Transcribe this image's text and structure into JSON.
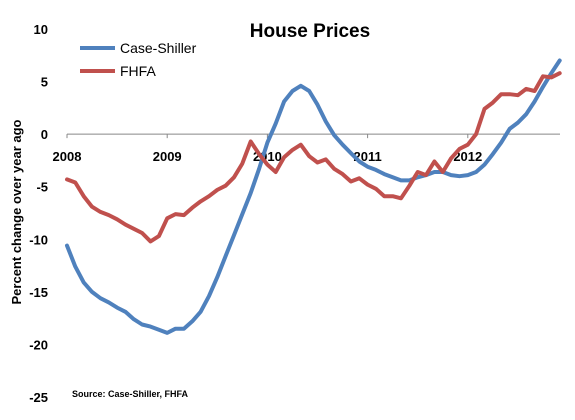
{
  "chart_data": {
    "type": "line",
    "title": "House Prices",
    "ylabel": "Percent change over year ago",
    "xlabel": "",
    "ylim": [
      -25,
      10
    ],
    "yticks": [
      10,
      5,
      0,
      -5,
      -10,
      -15,
      -20,
      -25
    ],
    "xlim": [
      2008,
      2013
    ],
    "xticks": [
      {
        "value": 2008,
        "label": "2008"
      },
      {
        "value": 2009,
        "label": "2009"
      },
      {
        "value": 2010,
        "label": "2010"
      },
      {
        "value": 2011,
        "label": "2011"
      },
      {
        "value": 2012,
        "label": "2012"
      }
    ],
    "grid": false,
    "legend_position": "top-left",
    "source": "Source: Case-Shiller, FHFA",
    "series": [
      {
        "name": "Case-Shiller",
        "color": "#4F81BD",
        "x": [
          2008.0,
          2008.083,
          2008.167,
          2008.25,
          2008.333,
          2008.417,
          2008.5,
          2008.583,
          2008.667,
          2008.75,
          2008.833,
          2008.917,
          2009.0,
          2009.083,
          2009.167,
          2009.25,
          2009.333,
          2009.417,
          2009.5,
          2009.583,
          2009.667,
          2009.75,
          2009.833,
          2009.917,
          2010.0,
          2010.083,
          2010.167,
          2010.25,
          2010.333,
          2010.417,
          2010.5,
          2010.583,
          2010.667,
          2010.75,
          2010.833,
          2010.917,
          2011.0,
          2011.083,
          2011.167,
          2011.25,
          2011.333,
          2011.417,
          2011.5,
          2011.583,
          2011.667,
          2011.75,
          2011.833,
          2011.917,
          2012.0,
          2012.083,
          2012.167,
          2012.25,
          2012.333,
          2012.417,
          2012.5,
          2012.583,
          2012.667,
          2012.75,
          2012.833,
          2012.917
        ],
        "y": [
          -10.6,
          -12.6,
          -14.1,
          -15.0,
          -15.6,
          -16.0,
          -16.5,
          -16.9,
          -17.6,
          -18.1,
          -18.3,
          -18.6,
          -18.9,
          -18.5,
          -18.5,
          -17.8,
          -16.9,
          -15.4,
          -13.6,
          -11.6,
          -9.6,
          -7.6,
          -5.6,
          -3.3,
          -0.8,
          1.0,
          3.1,
          4.1,
          4.6,
          4.1,
          2.8,
          1.2,
          -0.1,
          -1.0,
          -1.8,
          -2.6,
          -3.1,
          -3.4,
          -3.8,
          -4.1,
          -4.4,
          -4.4,
          -4.1,
          -3.9,
          -3.6,
          -3.6,
          -3.9,
          -4.0,
          -3.9,
          -3.6,
          -2.9,
          -1.9,
          -0.8,
          0.5,
          1.1,
          1.9,
          3.1,
          4.5,
          5.8,
          7.0
        ]
      },
      {
        "name": "FHFA",
        "color": "#C0504D",
        "x": [
          2008.0,
          2008.083,
          2008.167,
          2008.25,
          2008.333,
          2008.417,
          2008.5,
          2008.583,
          2008.667,
          2008.75,
          2008.833,
          2008.917,
          2009.0,
          2009.083,
          2009.167,
          2009.25,
          2009.333,
          2009.417,
          2009.5,
          2009.583,
          2009.667,
          2009.75,
          2009.833,
          2009.917,
          2010.0,
          2010.083,
          2010.167,
          2010.25,
          2010.333,
          2010.417,
          2010.5,
          2010.583,
          2010.667,
          2010.75,
          2010.833,
          2010.917,
          2011.0,
          2011.083,
          2011.167,
          2011.25,
          2011.333,
          2011.417,
          2011.5,
          2011.583,
          2011.667,
          2011.75,
          2011.833,
          2011.917,
          2012.0,
          2012.083,
          2012.167,
          2012.25,
          2012.333,
          2012.417,
          2012.5,
          2012.583,
          2012.667,
          2012.75,
          2012.833,
          2012.917
        ],
        "y": [
          -4.3,
          -4.6,
          -5.9,
          -6.9,
          -7.4,
          -7.7,
          -8.1,
          -8.6,
          -9.0,
          -9.4,
          -10.2,
          -9.7,
          -8.0,
          -7.6,
          -7.7,
          -7.0,
          -6.4,
          -5.9,
          -5.3,
          -4.9,
          -4.1,
          -2.8,
          -0.7,
          -1.9,
          -2.9,
          -3.6,
          -2.2,
          -1.5,
          -1.0,
          -2.1,
          -2.7,
          -2.4,
          -3.3,
          -3.8,
          -4.5,
          -4.2,
          -4.8,
          -5.2,
          -5.9,
          -5.9,
          -6.1,
          -4.9,
          -3.6,
          -3.9,
          -2.6,
          -3.6,
          -2.3,
          -1.4,
          -1.0,
          0.0,
          2.4,
          3.0,
          3.8,
          3.8,
          3.7,
          4.3,
          4.1,
          5.5,
          5.4,
          5.8
        ]
      }
    ]
  }
}
